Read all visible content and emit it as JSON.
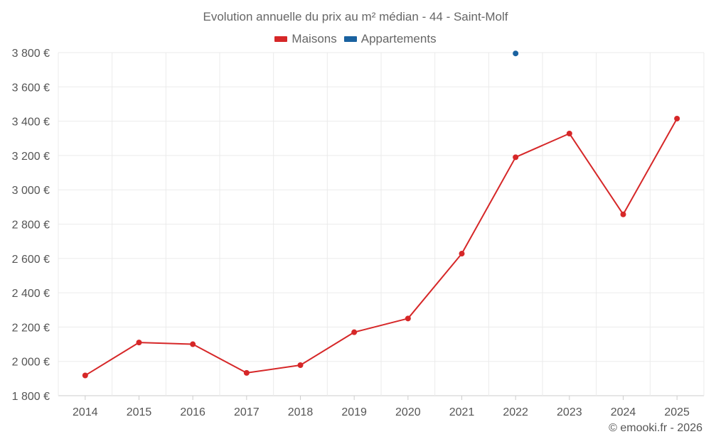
{
  "chart_data": {
    "type": "line",
    "title": "Evolution annuelle du prix au m² médian - 44 - Saint-Molf",
    "categories": [
      "2014",
      "2015",
      "2016",
      "2017",
      "2018",
      "2019",
      "2020",
      "2021",
      "2022",
      "2023",
      "2024",
      "2025"
    ],
    "series": [
      {
        "name": "Maisons",
        "color": "#d62728",
        "values": [
          1918,
          2110,
          2100,
          1933,
          1978,
          2170,
          2250,
          2628,
          3190,
          3328,
          2857,
          3415
        ]
      },
      {
        "name": "Appartements",
        "color": "#1a62a0",
        "values": [
          null,
          null,
          null,
          null,
          null,
          null,
          null,
          null,
          3795,
          null,
          null,
          null
        ]
      }
    ],
    "ylim": [
      1800,
      3800
    ],
    "yticks": [
      1800,
      2000,
      2200,
      2400,
      2600,
      2800,
      3000,
      3200,
      3400,
      3600,
      3800
    ],
    "ytick_labels": [
      "1 800 €",
      "2 000 €",
      "2 200 €",
      "2 400 €",
      "2 600 €",
      "2 800 €",
      "3 000 €",
      "3 200 €",
      "3 400 €",
      "3 600 €",
      "3 800 €"
    ],
    "xlabel": "",
    "ylabel": "",
    "grid": true,
    "legend_position": "top-center"
  },
  "credit": "© emooki.fr - 2026"
}
